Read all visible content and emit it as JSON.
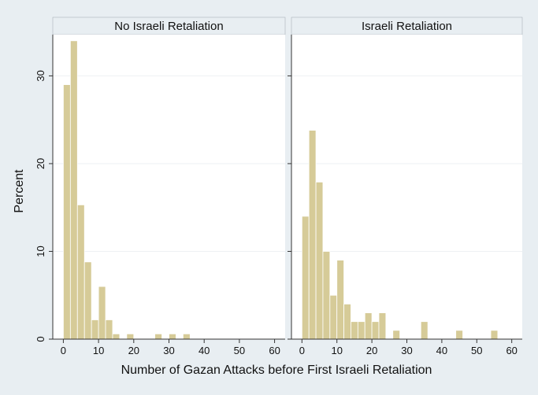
{
  "chart_data": {
    "type": "bar",
    "xlabel": "Number of Gazan Attacks before First Israeli Retaliation",
    "ylabel": "Percent",
    "xlim": [
      -3,
      63
    ],
    "ylim": [
      0,
      34.7
    ],
    "x_ticks": [
      0,
      10,
      20,
      30,
      40,
      50,
      60
    ],
    "y_ticks": [
      0,
      10,
      20,
      30
    ],
    "bin_width": 2,
    "bar_color": "#d6cb98",
    "bar_edge_color": "#ffffff",
    "panel_header_color": "#e8eef2",
    "grid": true,
    "panels": [
      {
        "title": "No Israeli Retaliation",
        "bins": [
          {
            "x0": 0,
            "x1": 2,
            "value": 29
          },
          {
            "x0": 2,
            "x1": 4,
            "value": 34
          },
          {
            "x0": 4,
            "x1": 6,
            "value": 15.3
          },
          {
            "x0": 6,
            "x1": 8,
            "value": 8.8
          },
          {
            "x0": 8,
            "x1": 10,
            "value": 2.2
          },
          {
            "x0": 10,
            "x1": 12,
            "value": 6
          },
          {
            "x0": 12,
            "x1": 14,
            "value": 2.2
          },
          {
            "x0": 14,
            "x1": 16,
            "value": 0.6
          },
          {
            "x0": 18,
            "x1": 20,
            "value": 0.6
          },
          {
            "x0": 26,
            "x1": 28,
            "value": 0.6
          },
          {
            "x0": 30,
            "x1": 32,
            "value": 0.6
          },
          {
            "x0": 34,
            "x1": 36,
            "value": 0.6
          }
        ]
      },
      {
        "title": "Israeli Retaliation",
        "bins": [
          {
            "x0": 0,
            "x1": 2,
            "value": 14
          },
          {
            "x0": 2,
            "x1": 4,
            "value": 23.8
          },
          {
            "x0": 4,
            "x1": 6,
            "value": 17.9
          },
          {
            "x0": 6,
            "x1": 8,
            "value": 10
          },
          {
            "x0": 8,
            "x1": 10,
            "value": 5
          },
          {
            "x0": 10,
            "x1": 12,
            "value": 9
          },
          {
            "x0": 12,
            "x1": 14,
            "value": 4
          },
          {
            "x0": 14,
            "x1": 16,
            "value": 2
          },
          {
            "x0": 16,
            "x1": 18,
            "value": 2
          },
          {
            "x0": 18,
            "x1": 20,
            "value": 3
          },
          {
            "x0": 20,
            "x1": 22,
            "value": 2
          },
          {
            "x0": 22,
            "x1": 24,
            "value": 3
          },
          {
            "x0": 26,
            "x1": 28,
            "value": 1
          },
          {
            "x0": 34,
            "x1": 36,
            "value": 2
          },
          {
            "x0": 44,
            "x1": 46,
            "value": 1
          },
          {
            "x0": 54,
            "x1": 56,
            "value": 1
          }
        ]
      }
    ]
  }
}
